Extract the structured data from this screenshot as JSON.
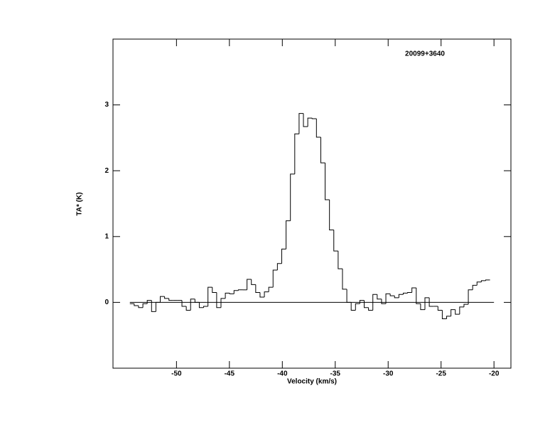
{
  "chart_data": {
    "type": "step",
    "annotation": "20099+3640",
    "x_label": "Velocity (km/s)",
    "y_label": "TA* (K)",
    "color": "#000000",
    "xlim": [
      -56,
      -18.4
    ],
    "ylim": [
      -1,
      4
    ],
    "xticks": [
      -50,
      -45,
      -40,
      -35,
      -30,
      -25,
      -20
    ],
    "yticks": [
      0,
      1,
      2,
      3
    ],
    "x": [
      -54.2,
      -53.79,
      -53.38,
      -52.97,
      -52.56,
      -52.15,
      -51.74,
      -51.33,
      -50.92,
      -50.51,
      -50.1,
      -49.69,
      -49.28,
      -48.87,
      -48.46,
      -48.05,
      -47.64,
      -47.23,
      -46.82,
      -46.41,
      -46.0,
      -45.59,
      -45.18,
      -44.77,
      -44.36,
      -43.95,
      -43.54,
      -43.13,
      -42.72,
      -42.31,
      -41.9,
      -41.49,
      -41.08,
      -40.67,
      -40.26,
      -39.85,
      -39.44,
      -39.03,
      -38.62,
      -38.21,
      -37.8,
      -37.39,
      -36.98,
      -36.57,
      -36.16,
      -35.75,
      -35.34,
      -34.93,
      -34.52,
      -34.11,
      -33.7,
      -33.29,
      -32.88,
      -32.47,
      -32.06,
      -31.65,
      -31.24,
      -30.83,
      -30.42,
      -30.01,
      -29.6,
      -29.19,
      -28.78,
      -28.37,
      -27.96,
      -27.55,
      -27.14,
      -26.73,
      -26.32,
      -25.91,
      -25.5,
      -25.09,
      -24.68,
      -24.27,
      -23.86,
      -23.45,
      -23.04,
      -22.63,
      -22.22,
      -21.81,
      -21.4,
      -20.99,
      -20.58
    ],
    "values": [
      -0.02,
      -0.05,
      -0.08,
      -0.02,
      0.03,
      -0.14,
      0.0,
      0.09,
      0.06,
      0.03,
      0.03,
      0.03,
      -0.06,
      -0.12,
      0.05,
      0.0,
      -0.08,
      -0.06,
      0.23,
      0.15,
      -0.08,
      0.06,
      0.14,
      0.13,
      0.18,
      0.19,
      0.19,
      0.35,
      0.27,
      0.15,
      0.08,
      0.16,
      0.23,
      0.49,
      0.59,
      0.81,
      1.24,
      1.95,
      2.56,
      2.87,
      2.67,
      2.8,
      2.79,
      2.51,
      2.12,
      1.56,
      1.1,
      0.78,
      0.51,
      0.2,
      0.0,
      -0.12,
      -0.02,
      0.03,
      -0.08,
      -0.12,
      0.12,
      0.05,
      -0.02,
      0.13,
      0.1,
      0.07,
      0.12,
      0.14,
      0.15,
      0.22,
      -0.02,
      -0.11,
      0.07,
      -0.06,
      -0.06,
      -0.12,
      -0.25,
      -0.21,
      -0.11,
      -0.18,
      -0.07,
      -0.03,
      0.19,
      0.26,
      0.31,
      0.33,
      0.34
    ]
  }
}
